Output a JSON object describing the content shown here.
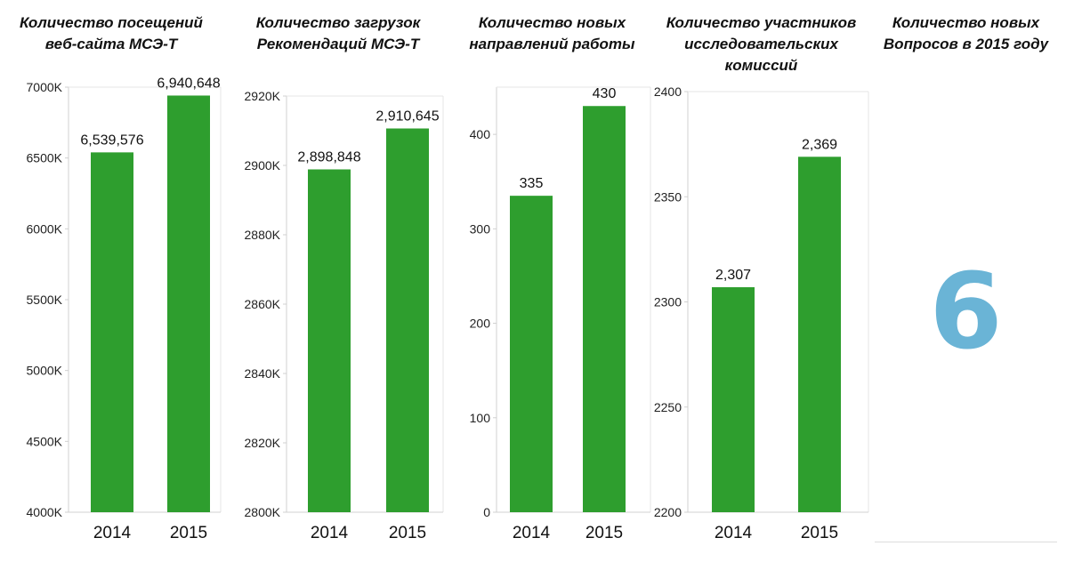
{
  "big_number": {
    "title_lines": [
      "Количество новых",
      "Вопросов в 2015 году"
    ],
    "value": "6"
  },
  "colors": {
    "bar": "#2e9e2e",
    "big_number": "#6ab4d6",
    "axis": "#d0d0d0"
  },
  "chart_data": [
    {
      "type": "bar",
      "title_lines": [
        "Количество посещений",
        "веб-сайта МСЭ-Т"
      ],
      "categories": [
        "2014",
        "2015"
      ],
      "values": [
        6539576,
        6940648
      ],
      "data_labels": [
        "6,539,576",
        "6,940,648"
      ],
      "ylim": [
        4000000,
        7000000
      ],
      "yticks": [
        4000000,
        4500000,
        5000000,
        5500000,
        6000000,
        6500000,
        7000000
      ],
      "ytick_labels": [
        "4000K",
        "4500K",
        "5000K",
        "5500K",
        "6000K",
        "6500K",
        "7000K"
      ],
      "grid": false
    },
    {
      "type": "bar",
      "title_lines": [
        "Количество загрузок",
        "Рекомендаций МСЭ-Т"
      ],
      "categories": [
        "2014",
        "2015"
      ],
      "values": [
        2898848,
        2910645
      ],
      "data_labels": [
        "2,898,848",
        "2,910,645"
      ],
      "ylim": [
        2800000,
        2920000
      ],
      "yticks": [
        2800000,
        2820000,
        2840000,
        2860000,
        2880000,
        2900000,
        2920000
      ],
      "ytick_labels": [
        "2800K",
        "2820K",
        "2840K",
        "2860K",
        "2880K",
        "2900K",
        "2920K"
      ],
      "grid": false
    },
    {
      "type": "bar",
      "title_lines": [
        "Количество новых",
        "направлений работы"
      ],
      "categories": [
        "2014",
        "2015"
      ],
      "values": [
        335,
        430
      ],
      "data_labels": [
        "335",
        "430"
      ],
      "ylim": [
        0,
        450
      ],
      "yticks": [
        0,
        100,
        200,
        300,
        400
      ],
      "ytick_labels": [
        "0",
        "100",
        "200",
        "300",
        "400"
      ],
      "grid": false
    },
    {
      "type": "bar",
      "title_lines": [
        "Количество участников",
        "исследовательских",
        "комиссий"
      ],
      "categories": [
        "2014",
        "2015"
      ],
      "values": [
        2307,
        2369
      ],
      "data_labels": [
        "2,307",
        "2,369"
      ],
      "ylim": [
        2200,
        2400
      ],
      "yticks": [
        2200,
        2250,
        2300,
        2350,
        2400
      ],
      "ytick_labels": [
        "2200",
        "2250",
        "2300",
        "2350",
        "2400"
      ],
      "grid": false
    }
  ]
}
